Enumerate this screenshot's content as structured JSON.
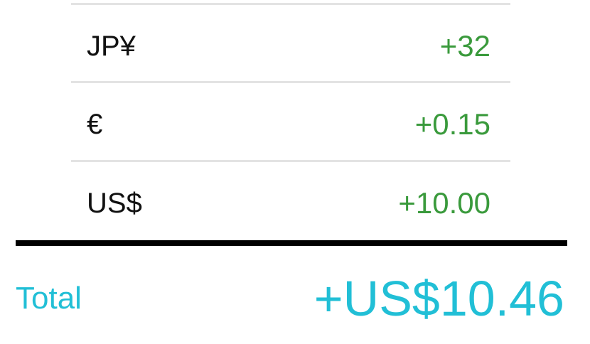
{
  "rows": [
    {
      "currency": "JP¥",
      "amount": "+32"
    },
    {
      "currency": "€",
      "amount": "+0.15"
    },
    {
      "currency": "US$",
      "amount": "+10.00"
    }
  ],
  "total": {
    "label": "Total",
    "amount": "+US$10.46"
  },
  "colors": {
    "positive_amount": "#3a9a3c",
    "total_accent": "#21bfd6",
    "separator": "#e3e3e3",
    "total_rule": "#000000",
    "label_text": "#111111"
  }
}
